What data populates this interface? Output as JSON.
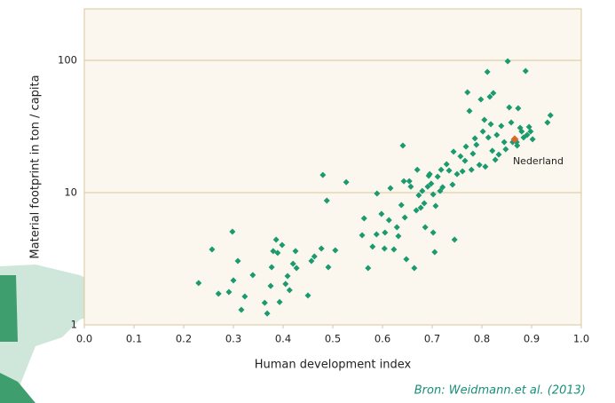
{
  "chart_data": {
    "type": "scatter",
    "xlabel": "Human development index",
    "ylabel": "Material footprint  in  ton / capita",
    "source": "Bron: Weidmann.et al. (2013)",
    "xlim": [
      0,
      1
    ],
    "ylim": [
      1,
      245
    ],
    "xticks": [
      {
        "value": 0,
        "label": "0.0"
      },
      0.1,
      0.2,
      0.3,
      0.4,
      0.5,
      0.6,
      0.7,
      0.8,
      0.9,
      {
        "value": 1,
        "label": "1.0"
      }
    ],
    "yticks": [
      1,
      10,
      100
    ],
    "log_y": true,
    "grid": true,
    "color": "#1a9a6e",
    "x": [
      0.23,
      0.257,
      0.27,
      0.291,
      0.298,
      0.3,
      0.309,
      0.316,
      0.323,
      0.339,
      0.363,
      0.368,
      0.375,
      0.377,
      0.38,
      0.386,
      0.389,
      0.393,
      0.398,
      0.405,
      0.409,
      0.413,
      0.42,
      0.425,
      0.427,
      0.45,
      0.457,
      0.463,
      0.477,
      0.491,
      0.505,
      0.48,
      0.488,
      0.527,
      0.559,
      0.563,
      0.571,
      0.58,
      0.588,
      0.589,
      0.598,
      0.604,
      0.605,
      0.613,
      0.616,
      0.623,
      0.629,
      0.632,
      0.638,
      0.641,
      0.643,
      0.645,
      0.648,
      0.654,
      0.657,
      0.664,
      0.668,
      0.67,
      0.673,
      0.677,
      0.68,
      0.684,
      0.686,
      0.691,
      0.693,
      0.695,
      0.698,
      0.702,
      0.702,
      0.705,
      0.707,
      0.711,
      0.716,
      0.718,
      0.721,
      0.729,
      0.734,
      0.741,
      0.743,
      0.745,
      0.75,
      0.757,
      0.761,
      0.766,
      0.768,
      0.771,
      0.775,
      0.779,
      0.782,
      0.786,
      0.789,
      0.795,
      0.798,
      0.802,
      0.805,
      0.807,
      0.811,
      0.813,
      0.816,
      0.818,
      0.821,
      0.823,
      0.827,
      0.83,
      0.834,
      0.839,
      0.845,
      0.848,
      0.852,
      0.855,
      0.859,
      0.862,
      0.87,
      0.871,
      0.873,
      0.877,
      0.88,
      0.884,
      0.888,
      0.891,
      0.895,
      0.898,
      0.902,
      0.932,
      0.938
    ],
    "y": [
      2.07,
      3.72,
      1.72,
      1.77,
      5.07,
      2.17,
      3.04,
      1.3,
      1.64,
      2.38,
      1.47,
      1.22,
      1.97,
      2.73,
      3.61,
      4.41,
      3.5,
      1.49,
      4.02,
      2.04,
      2.34,
      1.83,
      2.9,
      3.61,
      2.69,
      1.67,
      3.04,
      3.29,
      3.78,
      2.73,
      3.66,
      13.6,
      8.7,
      12.0,
      4.76,
      6.39,
      2.69,
      3.9,
      4.84,
      9.85,
      6.9,
      3.78,
      4.99,
      6.19,
      10.8,
      3.72,
      5.47,
      4.69,
      8.05,
      22.7,
      12.2,
      6.49,
      3.14,
      12.2,
      11.1,
      2.69,
      7.34,
      14.9,
      9.55,
      7.69,
      10.3,
      8.3,
      5.47,
      11.1,
      13.4,
      13.8,
      11.7,
      9.7,
      4.99,
      3.55,
      7.93,
      13.2,
      10.3,
      14.9,
      11.0,
      16.4,
      14.7,
      11.5,
      20.4,
      4.41,
      13.8,
      18.8,
      14.5,
      17.4,
      22.3,
      57.3,
      41.4,
      14.9,
      19.7,
      25.7,
      23.0,
      16.2,
      50.7,
      29.0,
      35.5,
      15.7,
      81.8,
      26.1,
      53.1,
      32.9,
      20.7,
      56.5,
      17.7,
      27.3,
      19.4,
      31.9,
      24.1,
      21.3,
      98.5,
      44.1,
      33.9,
      24.1,
      24.1,
      22.7,
      43.4,
      30.9,
      29.0,
      26.1,
      83.0,
      27.3,
      31.4,
      29.0,
      25.3,
      33.9,
      38.4
    ],
    "highlight": {
      "label": "Nederland",
      "x": 0.866,
      "y": 25.3,
      "color": "#d9682f"
    }
  }
}
